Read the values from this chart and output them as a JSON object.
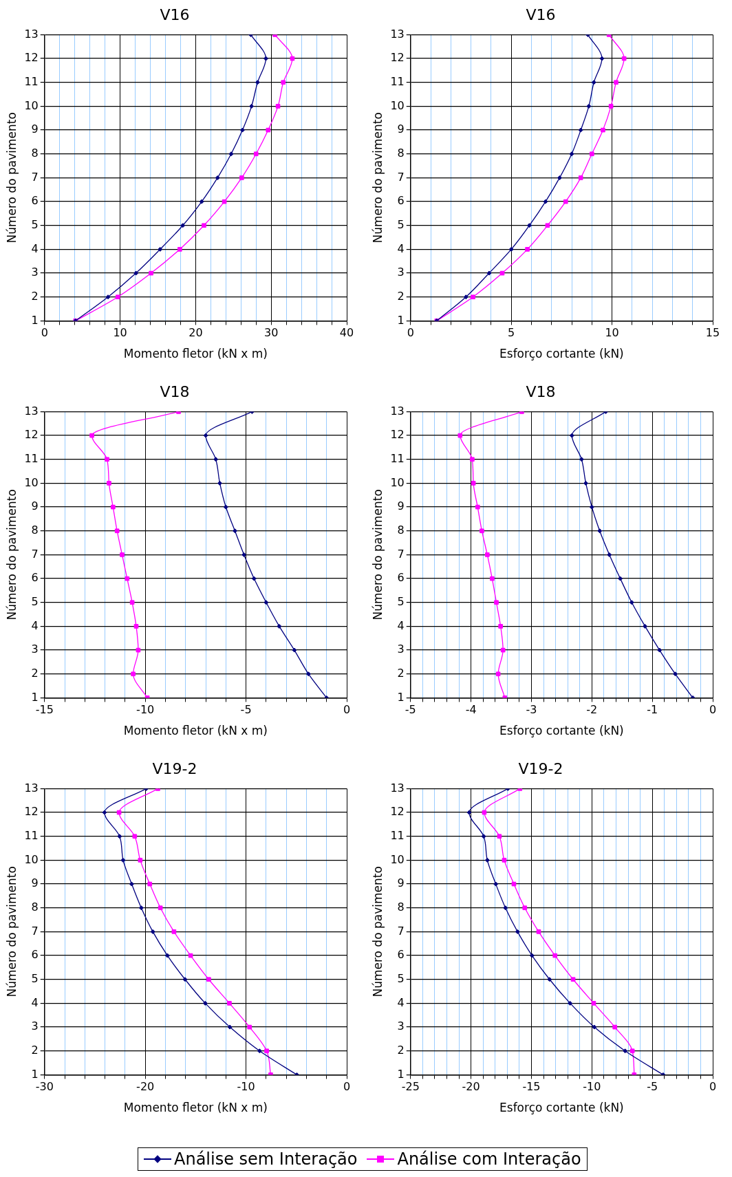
{
  "chart_data": [
    {
      "type": "line",
      "title": "V16",
      "xlabel": "Momento fletor (kN x m)",
      "ylabel": "Número do pavimento",
      "xlim": [
        0,
        40
      ],
      "xticks": [
        0,
        {
          "value": 2,
          "label": null
        },
        {
          "value": 4,
          "label": null
        },
        {
          "value": 6,
          "label": null
        },
        {
          "value": 8,
          "label": null
        },
        10,
        {
          "value": 12,
          "label": null
        },
        {
          "value": 14,
          "label": null
        },
        {
          "value": 16,
          "label": null
        },
        {
          "value": 18,
          "label": null
        },
        20,
        {
          "value": 22,
          "label": null
        },
        {
          "value": 24,
          "label": null
        },
        {
          "value": 26,
          "label": null
        },
        {
          "value": 28,
          "label": null
        },
        30,
        {
          "value": 32,
          "label": null
        },
        {
          "value": 34,
          "label": null
        },
        {
          "value": 36,
          "label": null
        },
        {
          "value": 38,
          "label": null
        },
        40
      ],
      "ylim": [
        1,
        13
      ],
      "yticks": [
        1,
        2,
        3,
        4,
        5,
        6,
        7,
        8,
        9,
        10,
        11,
        12,
        13
      ],
      "grid": true,
      "legend": "bottom",
      "series": [
        {
          "name": "Análise sem Interação",
          "color": "#000080",
          "marker": "diamond",
          "x": [
            4.1,
            8.4,
            12.1,
            15.3,
            18.3,
            20.8,
            22.9,
            24.7,
            26.2,
            27.4,
            28.2,
            29.3,
            27.3
          ],
          "values": [
            1,
            2,
            3,
            4,
            5,
            6,
            7,
            8,
            9,
            10,
            11,
            12,
            13
          ]
        },
        {
          "name": "Análise com Interação",
          "color": "#ff00ff",
          "marker": "square",
          "x": [
            4.1,
            9.7,
            14.1,
            17.9,
            21.1,
            23.8,
            26.1,
            28.0,
            29.6,
            30.9,
            31.6,
            32.8,
            30.5
          ],
          "values": [
            1,
            2,
            3,
            4,
            5,
            6,
            7,
            8,
            9,
            10,
            11,
            12,
            13
          ]
        }
      ]
    },
    {
      "type": "line",
      "title": "V16",
      "xlabel": "Esforço cortante (kN)",
      "ylabel": "Número do pavimento",
      "xlim": [
        0,
        15
      ],
      "xticks": [
        0,
        {
          "value": 1,
          "label": null
        },
        {
          "value": 2,
          "label": null
        },
        {
          "value": 3,
          "label": null
        },
        {
          "value": 4,
          "label": null
        },
        5,
        {
          "value": 6,
          "label": null
        },
        {
          "value": 7,
          "label": null
        },
        {
          "value": 8,
          "label": null
        },
        {
          "value": 9,
          "label": null
        },
        10,
        {
          "value": 11,
          "label": null
        },
        {
          "value": 12,
          "label": null
        },
        {
          "value": 13,
          "label": null
        },
        {
          "value": 14,
          "label": null
        },
        15
      ],
      "ylim": [
        1,
        13
      ],
      "yticks": [
        1,
        2,
        3,
        4,
        5,
        6,
        7,
        8,
        9,
        10,
        11,
        12,
        13
      ],
      "grid": true,
      "series": [
        {
          "color": "#000080",
          "marker": "diamond",
          "x": [
            1.3,
            2.75,
            3.9,
            5.0,
            5.9,
            6.7,
            7.4,
            8.0,
            8.45,
            8.85,
            9.1,
            9.5,
            8.8
          ],
          "values": [
            1,
            2,
            3,
            4,
            5,
            6,
            7,
            8,
            9,
            10,
            11,
            12,
            13
          ]
        },
        {
          "color": "#ff00ff",
          "marker": "square",
          "x": [
            1.3,
            3.1,
            4.55,
            5.8,
            6.8,
            7.7,
            8.45,
            9.0,
            9.55,
            9.95,
            10.2,
            10.6,
            9.85
          ],
          "values": [
            1,
            2,
            3,
            4,
            5,
            6,
            7,
            8,
            9,
            10,
            11,
            12,
            13
          ]
        }
      ]
    },
    {
      "type": "line",
      "title": "V18",
      "xlabel": "Momento fletor (kN x m)",
      "ylabel": "Número do pavimento",
      "xlim": [
        -15,
        0
      ],
      "xticks": [
        -15,
        {
          "value": -14,
          "label": null
        },
        {
          "value": -13,
          "label": null
        },
        {
          "value": -12,
          "label": null
        },
        {
          "value": -11,
          "label": null
        },
        -10,
        {
          "value": -9,
          "label": null
        },
        {
          "value": -8,
          "label": null
        },
        {
          "value": -7,
          "label": null
        },
        {
          "value": -6,
          "label": null
        },
        -5,
        {
          "value": -4,
          "label": null
        },
        {
          "value": -3,
          "label": null
        },
        {
          "value": -2,
          "label": null
        },
        {
          "value": -1,
          "label": null
        },
        0
      ],
      "ylim": [
        1,
        13
      ],
      "yticks": [
        1,
        2,
        3,
        4,
        5,
        6,
        7,
        8,
        9,
        10,
        11,
        12,
        13
      ],
      "grid": true,
      "series": [
        {
          "color": "#000080",
          "marker": "diamond",
          "x": [
            -1.0,
            -1.9,
            -2.6,
            -3.35,
            -4.0,
            -4.6,
            -5.1,
            -5.55,
            -6.0,
            -6.3,
            -6.5,
            -7.0,
            -4.7
          ],
          "values": [
            1,
            2,
            3,
            4,
            5,
            6,
            7,
            8,
            9,
            10,
            11,
            12,
            13
          ]
        },
        {
          "color": "#ff00ff",
          "marker": "square",
          "x": [
            -9.9,
            -10.6,
            -10.35,
            -10.45,
            -10.65,
            -10.9,
            -11.15,
            -11.4,
            -11.6,
            -11.8,
            -11.9,
            -12.65,
            -8.35
          ],
          "values": [
            1,
            2,
            3,
            4,
            5,
            6,
            7,
            8,
            9,
            10,
            11,
            12,
            13
          ]
        }
      ]
    },
    {
      "type": "line",
      "title": "V18",
      "xlabel": "Esforço cortante (kN)",
      "ylabel": "Número do pavimento",
      "xlim": [
        -5,
        0
      ],
      "xticks": [
        -5,
        {
          "value": -4.8,
          "label": null
        },
        {
          "value": -4.6,
          "label": null
        },
        {
          "value": -4.4,
          "label": null
        },
        {
          "value": -4.2,
          "label": null
        },
        -4,
        {
          "value": -3.8,
          "label": null
        },
        {
          "value": -3.6,
          "label": null
        },
        {
          "value": -3.4,
          "label": null
        },
        {
          "value": -3.2,
          "label": null
        },
        -3,
        {
          "value": -2.8,
          "label": null
        },
        {
          "value": -2.6,
          "label": null
        },
        {
          "value": -2.4,
          "label": null
        },
        {
          "value": -2.2,
          "label": null
        },
        -2,
        {
          "value": -1.8,
          "label": null
        },
        {
          "value": -1.6,
          "label": null
        },
        {
          "value": -1.4,
          "label": null
        },
        {
          "value": -1.2,
          "label": null
        },
        -1,
        {
          "value": -0.8,
          "label": null
        },
        {
          "value": -0.6,
          "label": null
        },
        {
          "value": -0.4,
          "label": null
        },
        {
          "value": -0.2,
          "label": null
        },
        0
      ],
      "ylim": [
        1,
        13
      ],
      "yticks": [
        1,
        2,
        3,
        4,
        5,
        6,
        7,
        8,
        9,
        10,
        11,
        12,
        13
      ],
      "grid": true,
      "series": [
        {
          "color": "#000080",
          "marker": "diamond",
          "x": [
            -0.33,
            -0.62,
            -0.88,
            -1.12,
            -1.34,
            -1.53,
            -1.71,
            -1.87,
            -2.0,
            -2.1,
            -2.17,
            -2.33,
            -1.77
          ],
          "values": [
            1,
            2,
            3,
            4,
            5,
            6,
            7,
            8,
            9,
            10,
            11,
            12,
            13
          ]
        },
        {
          "color": "#ff00ff",
          "marker": "square",
          "x": [
            -3.44,
            -3.55,
            -3.47,
            -3.51,
            -3.58,
            -3.65,
            -3.73,
            -3.82,
            -3.89,
            -3.96,
            -3.98,
            -4.18,
            -3.16
          ],
          "values": [
            1,
            2,
            3,
            4,
            5,
            6,
            7,
            8,
            9,
            10,
            11,
            12,
            13
          ]
        }
      ]
    },
    {
      "type": "line",
      "title": "V19-2",
      "xlabel": "Momento fletor (kN x m)",
      "ylabel": "Número do pavimento",
      "xlim": [
        -30,
        0
      ],
      "xticks": [
        -30,
        {
          "value": -28,
          "label": null
        },
        {
          "value": -26,
          "label": null
        },
        {
          "value": -24,
          "label": null
        },
        {
          "value": -22,
          "label": null
        },
        -20,
        {
          "value": -18,
          "label": null
        },
        {
          "value": -16,
          "label": null
        },
        {
          "value": -14,
          "label": null
        },
        {
          "value": -12,
          "label": null
        },
        -10,
        {
          "value": -8,
          "label": null
        },
        {
          "value": -6,
          "label": null
        },
        {
          "value": -4,
          "label": null
        },
        {
          "value": -2,
          "label": null
        },
        0
      ],
      "ylim": [
        1,
        13
      ],
      "yticks": [
        1,
        2,
        3,
        4,
        5,
        6,
        7,
        8,
        9,
        10,
        11,
        12,
        13
      ],
      "grid": true,
      "series": [
        {
          "color": "#000080",
          "marker": "diamond",
          "x": [
            -4.95,
            -8.65,
            -11.6,
            -14.05,
            -16.05,
            -17.8,
            -19.25,
            -20.4,
            -21.35,
            -22.2,
            -22.55,
            -24.05,
            -19.9
          ],
          "values": [
            1,
            2,
            3,
            4,
            5,
            6,
            7,
            8,
            9,
            10,
            11,
            12,
            13
          ]
        },
        {
          "color": "#ff00ff",
          "marker": "square",
          "x": [
            -7.55,
            -7.95,
            -9.65,
            -11.65,
            -13.7,
            -15.5,
            -17.15,
            -18.5,
            -19.55,
            -20.5,
            -21.05,
            -22.6,
            -18.75
          ],
          "values": [
            1,
            2,
            3,
            4,
            5,
            6,
            7,
            8,
            9,
            10,
            11,
            12,
            13
          ]
        }
      ]
    },
    {
      "type": "line",
      "title": "V19-2",
      "xlabel": "Esforço cortante (kN)",
      "ylabel": "Número do pavimento",
      "xlim": [
        -25,
        0
      ],
      "xticks": [
        -25,
        {
          "value": -24,
          "label": null
        },
        {
          "value": -23,
          "label": null
        },
        {
          "value": -22,
          "label": null
        },
        {
          "value": -21,
          "label": null
        },
        -20,
        {
          "value": -19,
          "label": null
        },
        {
          "value": -18,
          "label": null
        },
        {
          "value": -17,
          "label": null
        },
        {
          "value": -16,
          "label": null
        },
        -15,
        {
          "value": -14,
          "label": null
        },
        {
          "value": -13,
          "label": null
        },
        {
          "value": -12,
          "label": null
        },
        {
          "value": -11,
          "label": null
        },
        -10,
        {
          "value": -9,
          "label": null
        },
        {
          "value": -8,
          "label": null
        },
        {
          "value": -7,
          "label": null
        },
        {
          "value": -6,
          "label": null
        },
        -5,
        {
          "value": -4,
          "label": null
        },
        {
          "value": -3,
          "label": null
        },
        {
          "value": -2,
          "label": null
        },
        {
          "value": -1,
          "label": null
        },
        0
      ],
      "ylim": [
        1,
        13
      ],
      "yticks": [
        1,
        2,
        3,
        4,
        5,
        6,
        7,
        8,
        9,
        10,
        11,
        12,
        13
      ],
      "grid": true,
      "series": [
        {
          "color": "#000080",
          "marker": "diamond",
          "x": [
            -4.1,
            -7.25,
            -9.8,
            -11.8,
            -13.5,
            -14.95,
            -16.15,
            -17.15,
            -17.95,
            -18.65,
            -18.95,
            -20.15,
            -16.95
          ],
          "values": [
            1,
            2,
            3,
            4,
            5,
            6,
            7,
            8,
            9,
            10,
            11,
            12,
            13
          ]
        },
        {
          "color": "#ff00ff",
          "marker": "square",
          "x": [
            -6.5,
            -6.65,
            -8.1,
            -9.85,
            -11.55,
            -13.05,
            -14.4,
            -15.55,
            -16.45,
            -17.25,
            -17.65,
            -18.9,
            -15.95
          ],
          "values": [
            1,
            2,
            3,
            4,
            5,
            6,
            7,
            8,
            9,
            10,
            11,
            12,
            13
          ]
        }
      ]
    }
  ]
}
